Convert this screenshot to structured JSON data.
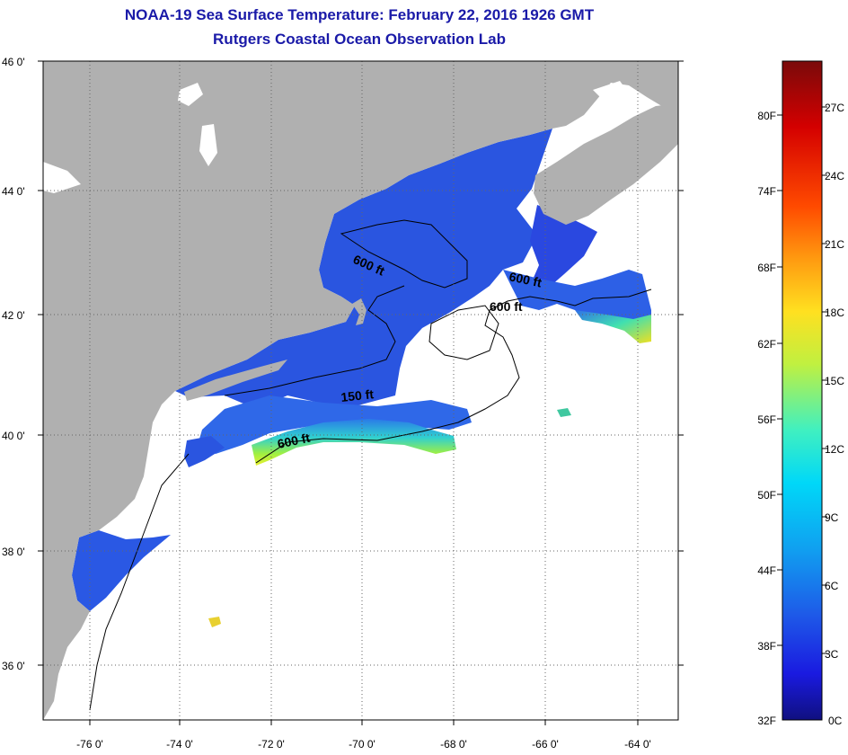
{
  "header": {
    "title": "NOAA-19 Sea Surface Temperature:  February 22, 2016 1926 GMT",
    "subtitle": "Rutgers Coastal Ocean Observation Lab"
  },
  "map": {
    "lat_labels": [
      "46 0'",
      "44 0'",
      "42 0'",
      "40 0'",
      "38 0'",
      "36 0'"
    ],
    "lon_labels": [
      "-76 0'",
      "-74 0'",
      "-72 0'",
      "-70 0'",
      "-68 0'",
      "-66 0'",
      "-64 0'"
    ],
    "contour_labels": [
      "600 ft",
      "600 ft",
      "600 ft",
      "150 ft",
      "600 ft"
    ],
    "land_color": "#b0b0b0",
    "cloud_color": "#ffffff"
  },
  "colorbar": {
    "fahrenheit_labels": [
      "80F",
      "74F",
      "68F",
      "62F",
      "56F",
      "50F",
      "44F",
      "38F",
      "32F"
    ],
    "celsius_labels": [
      "27C",
      "24C",
      "21C",
      "18C",
      "15C",
      "12C",
      "9C",
      "6C",
      "3C",
      "0C"
    ],
    "colors": [
      "#7a0a0a",
      "#d40000",
      "#ff4a00",
      "#ff9a10",
      "#ffe020",
      "#c0f040",
      "#40f0c0",
      "#00d8f8",
      "#10a0f0",
      "#1e5ae8",
      "#1a1ae0",
      "#101080"
    ]
  }
}
